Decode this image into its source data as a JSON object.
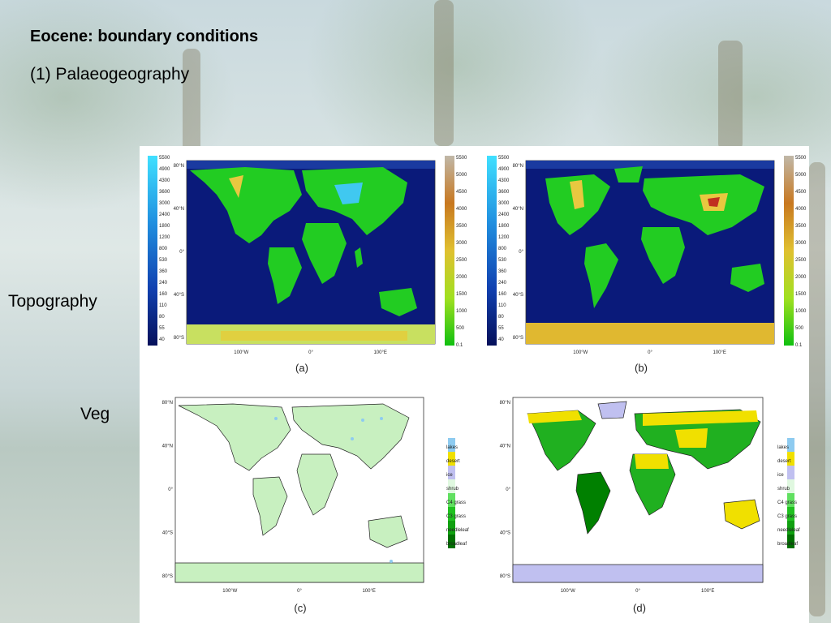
{
  "slide": {
    "title": "Eocene: boundary conditions",
    "subtitle": "(1) Palaeogeography",
    "row_labels": {
      "topography": "Topography",
      "veg": "Veg"
    }
  },
  "panels": {
    "a": {
      "caption": "(a)",
      "lon_ticks": [
        "100°W",
        "0°",
        "100°E"
      ],
      "lat_ticks": [
        "80°N",
        "40°N",
        "0°",
        "40°S",
        "80°S"
      ]
    },
    "b": {
      "caption": "(b)",
      "lon_ticks": [
        "100°W",
        "0°",
        "100°E"
      ],
      "lat_ticks": [
        "80°N",
        "40°N",
        "0°",
        "40°S",
        "80°S"
      ]
    },
    "c": {
      "caption": "(c)",
      "lon_ticks": [
        "100°W",
        "0°",
        "100°E"
      ],
      "lat_ticks": [
        "80°N",
        "40°N",
        "0°",
        "40°S",
        "80°S"
      ]
    },
    "d": {
      "caption": "(d)",
      "lon_ticks": [
        "100°W",
        "0°",
        "100°E"
      ],
      "lat_ticks": [
        "80°N",
        "40°N",
        "0°",
        "40°S",
        "80°S"
      ]
    }
  },
  "bathymetry_scale": [
    "5500",
    "4900",
    "4300",
    "3600",
    "3000",
    "2400",
    "1800",
    "1200",
    "800",
    "530",
    "360",
    "240",
    "160",
    "110",
    "80",
    "55",
    "40"
  ],
  "topography_scale": [
    "5500",
    "5000",
    "4500",
    "4000",
    "3500",
    "3000",
    "2500",
    "2000",
    "1500",
    "1000",
    "500",
    "0.1"
  ],
  "veg_legend": [
    "lakes",
    "desert",
    "ice",
    "shrub",
    "C4 grass",
    "C3 grass",
    "needleleaf",
    "broadleaf"
  ],
  "colors": {
    "ocean_deep": "#0a1a7a",
    "ocean_shelf": "#2050c0",
    "land": "#22cc22",
    "highland": "#e8c840",
    "ice_veg": "#c0c0f0",
    "shrub_veg": "#c8f0c0",
    "desert_veg": "#f0e000",
    "broadleaf": "#008000",
    "lakes": "#8ecbf0"
  }
}
